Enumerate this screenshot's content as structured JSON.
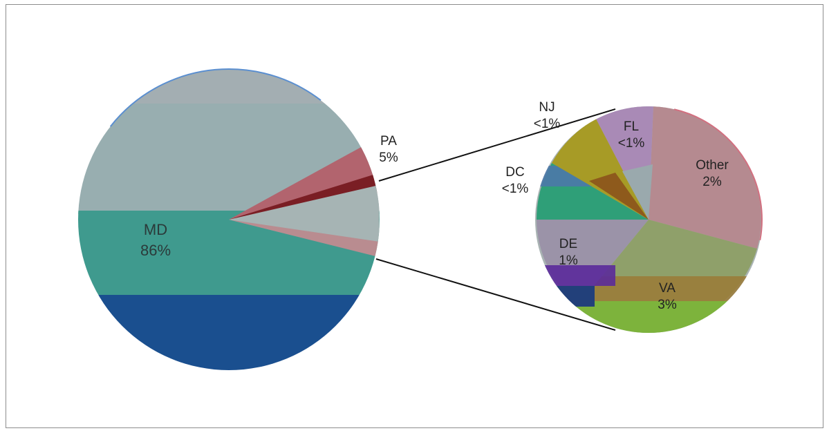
{
  "chart_data": {
    "type": "pie",
    "subtype": "pie-of-pie",
    "main_slices": [
      {
        "label": "MD",
        "value_label": "86%",
        "value": 86
      },
      {
        "label": "PA",
        "value_label": "5%",
        "value": 5
      },
      {
        "label": "",
        "value_label": "",
        "value": 9,
        "exploded_to_secondary_pie": true
      }
    ],
    "secondary_slices": [
      {
        "label": "Other",
        "value_label": "2%",
        "value": 2
      },
      {
        "label": "VA",
        "value_label": "3%",
        "value": 3
      },
      {
        "label": "DE",
        "value_label": "1%",
        "value": 1
      },
      {
        "label": "DC",
        "value_label": "<1%",
        "value": 0.5
      },
      {
        "label": "NJ",
        "value_label": "<1%",
        "value": 0.5
      },
      {
        "label": "FL",
        "value_label": "<1%",
        "value": 0.5
      }
    ],
    "legend": "none",
    "colors": {
      "MD": "#7fa6ad",
      "PA": "#b2646e",
      "Other": "#b58a90",
      "VA": "#8fa06a",
      "DE": "#6a6aa8",
      "DC": "#5f9aa0",
      "NJ": "#a7b6a8",
      "FL": "#a98ab6"
    }
  }
}
